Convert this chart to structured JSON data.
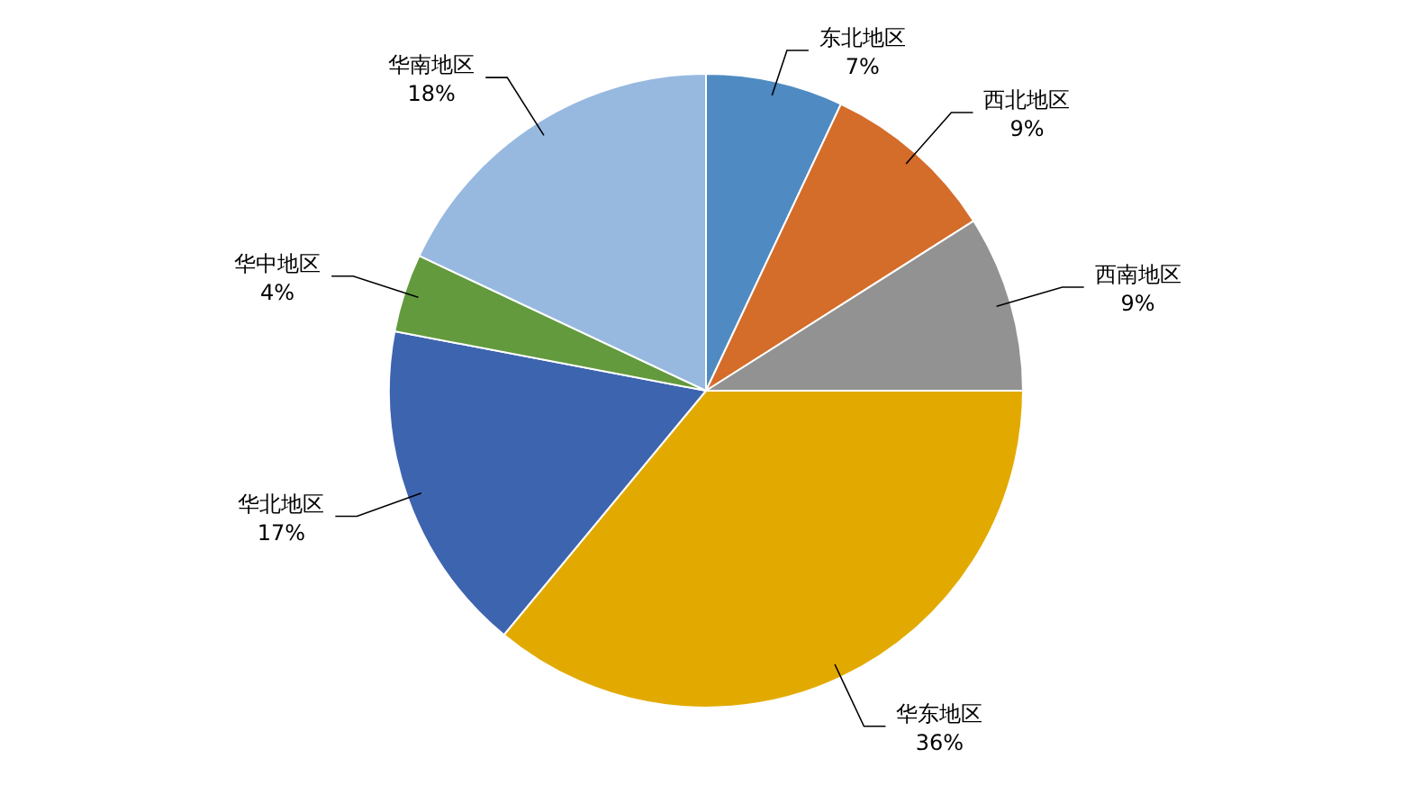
{
  "chart_data": {
    "type": "pie",
    "categories": [
      "东北地区",
      "西北地区",
      "西南地区",
      "华东地区",
      "华北地区",
      "华中地区",
      "华南地区"
    ],
    "values": [
      7,
      9,
      9,
      36,
      17,
      4,
      18
    ],
    "value_labels": [
      "7%",
      "9%",
      "9%",
      "36%",
      "17%",
      "4%",
      "18%"
    ],
    "colors": [
      "#4f8bc2",
      "#d46c2a",
      "#929292",
      "#e2aa00",
      "#3d64ae",
      "#629a3d",
      "#97b9e0"
    ],
    "legend": false
  }
}
